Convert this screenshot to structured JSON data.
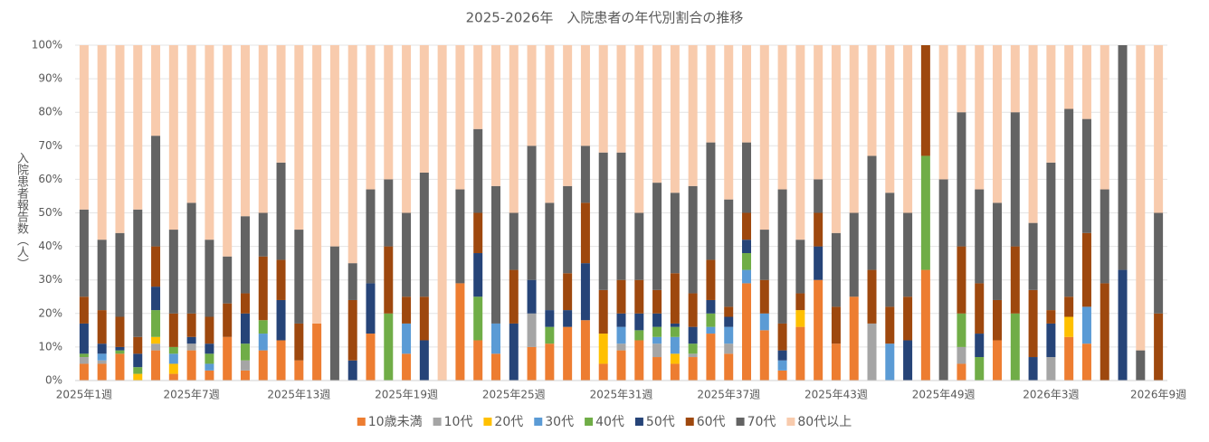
{
  "chart_data": {
    "type": "stacked_bar_100",
    "title": "2025-2026年　入院患者の年代別割合の推移",
    "y_label": "入院患者報告数（人）",
    "categories": [
      "2025年1週",
      null,
      null,
      null,
      null,
      null,
      "2025年7週",
      null,
      null,
      null,
      null,
      null,
      "2025年13週",
      null,
      null,
      null,
      null,
      null,
      "2025年19週",
      null,
      null,
      null,
      null,
      null,
      "2025年25週",
      null,
      null,
      null,
      null,
      null,
      "2025年31週",
      null,
      null,
      null,
      null,
      null,
      "2025年37週",
      null,
      null,
      null,
      null,
      null,
      "2025年43週",
      null,
      null,
      null,
      null,
      null,
      "2025年49週",
      null,
      null,
      null,
      null,
      null,
      "2026年3週",
      null,
      null,
      null,
      null,
      null,
      "2026年9週"
    ],
    "ylim": [
      0,
      100
    ],
    "yticks": [
      {
        "value": 0,
        "label": "0%"
      },
      {
        "value": 10,
        "label": "10%"
      },
      {
        "value": 20,
        "label": "20%"
      },
      {
        "value": 30,
        "label": "30%"
      },
      {
        "value": 40,
        "label": "40%"
      },
      {
        "value": 50,
        "label": "50%"
      },
      {
        "value": 60,
        "label": "60%"
      },
      {
        "value": 70,
        "label": "70%"
      },
      {
        "value": 80,
        "label": "80%"
      },
      {
        "value": 90,
        "label": "90%"
      },
      {
        "value": 100,
        "label": "100%"
      }
    ],
    "grid": true,
    "legend": "bottom",
    "series": [
      {
        "name": "10歳未満",
        "color": "#ED7D31",
        "values": [
          5,
          5,
          8,
          0,
          9,
          2,
          9,
          3,
          13,
          3,
          9,
          12,
          6,
          17,
          0,
          0,
          14,
          0,
          8,
          0,
          0,
          29,
          12,
          8,
          0,
          10,
          11,
          16,
          18,
          5,
          9,
          12,
          7,
          5,
          7,
          14,
          8,
          29,
          15,
          3,
          16,
          30,
          11,
          25,
          0,
          0,
          0,
          33,
          0,
          5,
          0,
          12,
          0,
          0,
          0,
          13,
          11,
          0,
          0,
          0,
          0
        ]
      },
      {
        "name": "10代",
        "color": "#A5A5A5",
        "values": [
          2,
          1,
          0,
          0,
          2,
          0,
          2,
          0,
          0,
          3,
          0,
          0,
          0,
          0,
          0,
          0,
          0,
          0,
          0,
          0,
          0,
          0,
          0,
          0,
          0,
          10,
          0,
          0,
          0,
          0,
          2,
          0,
          4,
          0,
          1,
          0,
          3,
          0,
          0,
          0,
          0,
          0,
          0,
          0,
          17,
          0,
          0,
          0,
          0,
          5,
          0,
          0,
          0,
          0,
          7,
          0,
          0,
          0,
          0,
          0,
          0
        ]
      },
      {
        "name": "20代",
        "color": "#FFC000",
        "values": [
          0,
          0,
          0,
          2,
          2,
          3,
          0,
          0,
          0,
          0,
          0,
          0,
          0,
          0,
          0,
          0,
          0,
          0,
          0,
          0,
          0,
          0,
          0,
          0,
          0,
          0,
          0,
          0,
          0,
          9,
          0,
          0,
          0,
          3,
          0,
          0,
          0,
          0,
          0,
          0,
          5,
          0,
          0,
          0,
          0,
          0,
          0,
          0,
          0,
          0,
          0,
          0,
          0,
          0,
          0,
          6,
          0,
          0,
          0,
          0,
          0
        ]
      },
      {
        "name": "30代",
        "color": "#5B9BD5",
        "values": [
          0,
          2,
          0,
          0,
          0,
          3,
          0,
          2,
          0,
          0,
          5,
          0,
          0,
          0,
          0,
          0,
          0,
          0,
          9,
          0,
          0,
          0,
          0,
          9,
          0,
          0,
          0,
          0,
          0,
          0,
          5,
          0,
          2,
          5,
          0,
          2,
          5,
          4,
          5,
          3,
          0,
          0,
          0,
          0,
          0,
          11,
          0,
          0,
          0,
          0,
          0,
          0,
          0,
          0,
          0,
          0,
          11,
          0,
          0,
          0,
          0
        ]
      },
      {
        "name": "40代",
        "color": "#70AD47",
        "values": [
          1,
          0,
          1,
          2,
          8,
          2,
          0,
          3,
          0,
          5,
          4,
          0,
          0,
          0,
          0,
          0,
          0,
          20,
          0,
          0,
          0,
          0,
          13,
          0,
          0,
          0,
          5,
          0,
          0,
          0,
          0,
          3,
          3,
          3,
          3,
          4,
          0,
          5,
          0,
          0,
          0,
          0,
          0,
          0,
          0,
          0,
          0,
          34,
          0,
          10,
          7,
          0,
          20,
          0,
          0,
          0,
          0,
          0,
          0,
          0,
          0
        ]
      },
      {
        "name": "50代",
        "color": "#264478",
        "values": [
          9,
          3,
          1,
          4,
          7,
          0,
          2,
          3,
          0,
          9,
          0,
          12,
          0,
          0,
          0,
          6,
          15,
          0,
          0,
          12,
          0,
          0,
          13,
          0,
          17,
          10,
          5,
          5,
          17,
          0,
          4,
          5,
          4,
          1,
          5,
          4,
          3,
          4,
          0,
          3,
          0,
          10,
          0,
          0,
          0,
          0,
          12,
          0,
          0,
          0,
          7,
          0,
          0,
          7,
          10,
          0,
          0,
          0,
          33,
          0,
          0
        ]
      },
      {
        "name": "60代",
        "color": "#9E480E",
        "values": [
          8,
          10,
          9,
          5,
          12,
          10,
          7,
          8,
          10,
          6,
          19,
          12,
          11,
          0,
          0,
          18,
          0,
          20,
          8,
          13,
          0,
          0,
          12,
          0,
          16,
          0,
          0,
          11,
          18,
          13,
          10,
          10,
          7,
          15,
          10,
          12,
          3,
          8,
          10,
          8,
          5,
          10,
          11,
          0,
          16,
          11,
          13,
          33,
          0,
          20,
          15,
          12,
          20,
          20,
          4,
          6,
          22,
          29,
          0,
          0,
          20
        ]
      },
      {
        "name": "70代",
        "color": "#636363",
        "values": [
          26,
          21,
          25,
          38,
          33,
          25,
          33,
          23,
          14,
          23,
          13,
          29,
          28,
          0,
          40,
          11,
          28,
          20,
          25,
          37,
          0,
          28,
          25,
          41,
          17,
          40,
          32,
          26,
          17,
          41,
          38,
          20,
          32,
          24,
          32,
          35,
          32,
          21,
          15,
          40,
          16,
          10,
          22,
          25,
          34,
          34,
          25,
          0,
          60,
          40,
          28,
          29,
          40,
          20,
          44,
          56,
          34,
          28,
          67,
          9,
          30
        ]
      },
      {
        "name": "80代以上",
        "color": "#F8CBAD",
        "values": [
          49,
          58,
          56,
          49,
          27,
          55,
          47,
          58,
          63,
          51,
          50,
          35,
          55,
          83,
          60,
          65,
          43,
          40,
          50,
          38,
          100,
          43,
          25,
          42,
          50,
          30,
          47,
          42,
          30,
          32,
          32,
          50,
          41,
          44,
          42,
          29,
          46,
          29,
          55,
          43,
          58,
          40,
          56,
          50,
          33,
          44,
          50,
          0,
          40,
          20,
          43,
          47,
          20,
          53,
          35,
          19,
          22,
          43,
          0,
          91,
          50
        ]
      }
    ]
  }
}
